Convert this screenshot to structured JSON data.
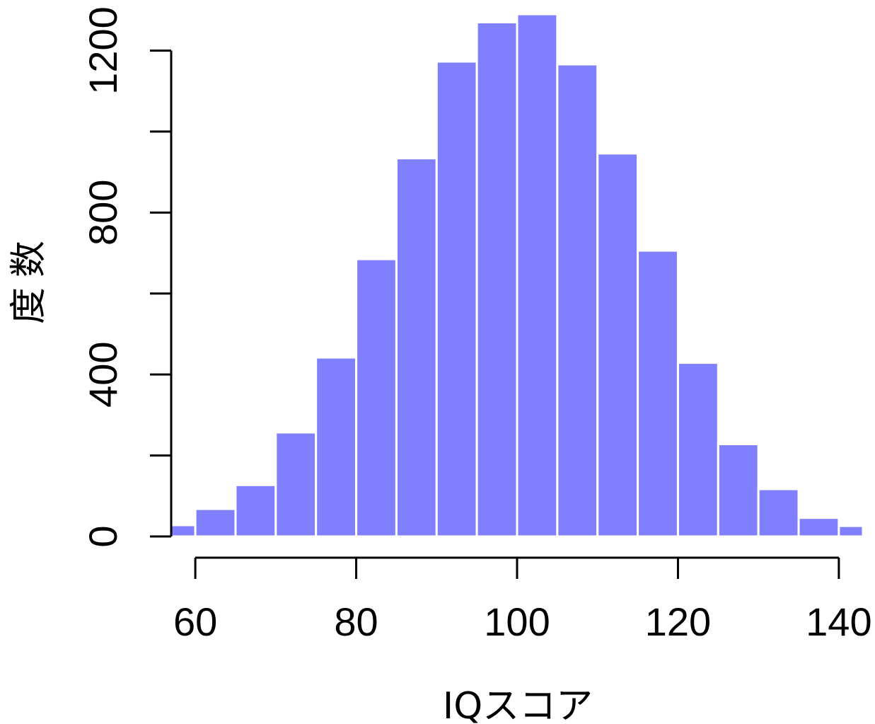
{
  "chart_data": {
    "type": "bar",
    "title": "",
    "xlabel": "IQスコア",
    "ylabel": "度数",
    "bin_edges": [
      57,
      60,
      65,
      70,
      75,
      80,
      85,
      90,
      95,
      100,
      105,
      110,
      115,
      120,
      125,
      130,
      135,
      140,
      143
    ],
    "values": [
      28,
      68,
      127,
      257,
      442,
      685,
      934,
      1173,
      1270,
      1290,
      1166,
      946,
      706,
      429,
      228,
      117,
      46,
      26
    ],
    "xlim": [
      57,
      143
    ],
    "ylim": [
      0,
      1290
    ],
    "x_ticks": [
      60,
      80,
      100,
      120,
      140
    ],
    "y_ticks": [
      0,
      200,
      400,
      600,
      800,
      1000,
      1200
    ],
    "y_tick_labels": [
      "0",
      "",
      "400",
      "",
      "800",
      "",
      "1200"
    ],
    "bar_color": "#8080ff",
    "bar_border_color": "#ffffff",
    "grid": false
  }
}
